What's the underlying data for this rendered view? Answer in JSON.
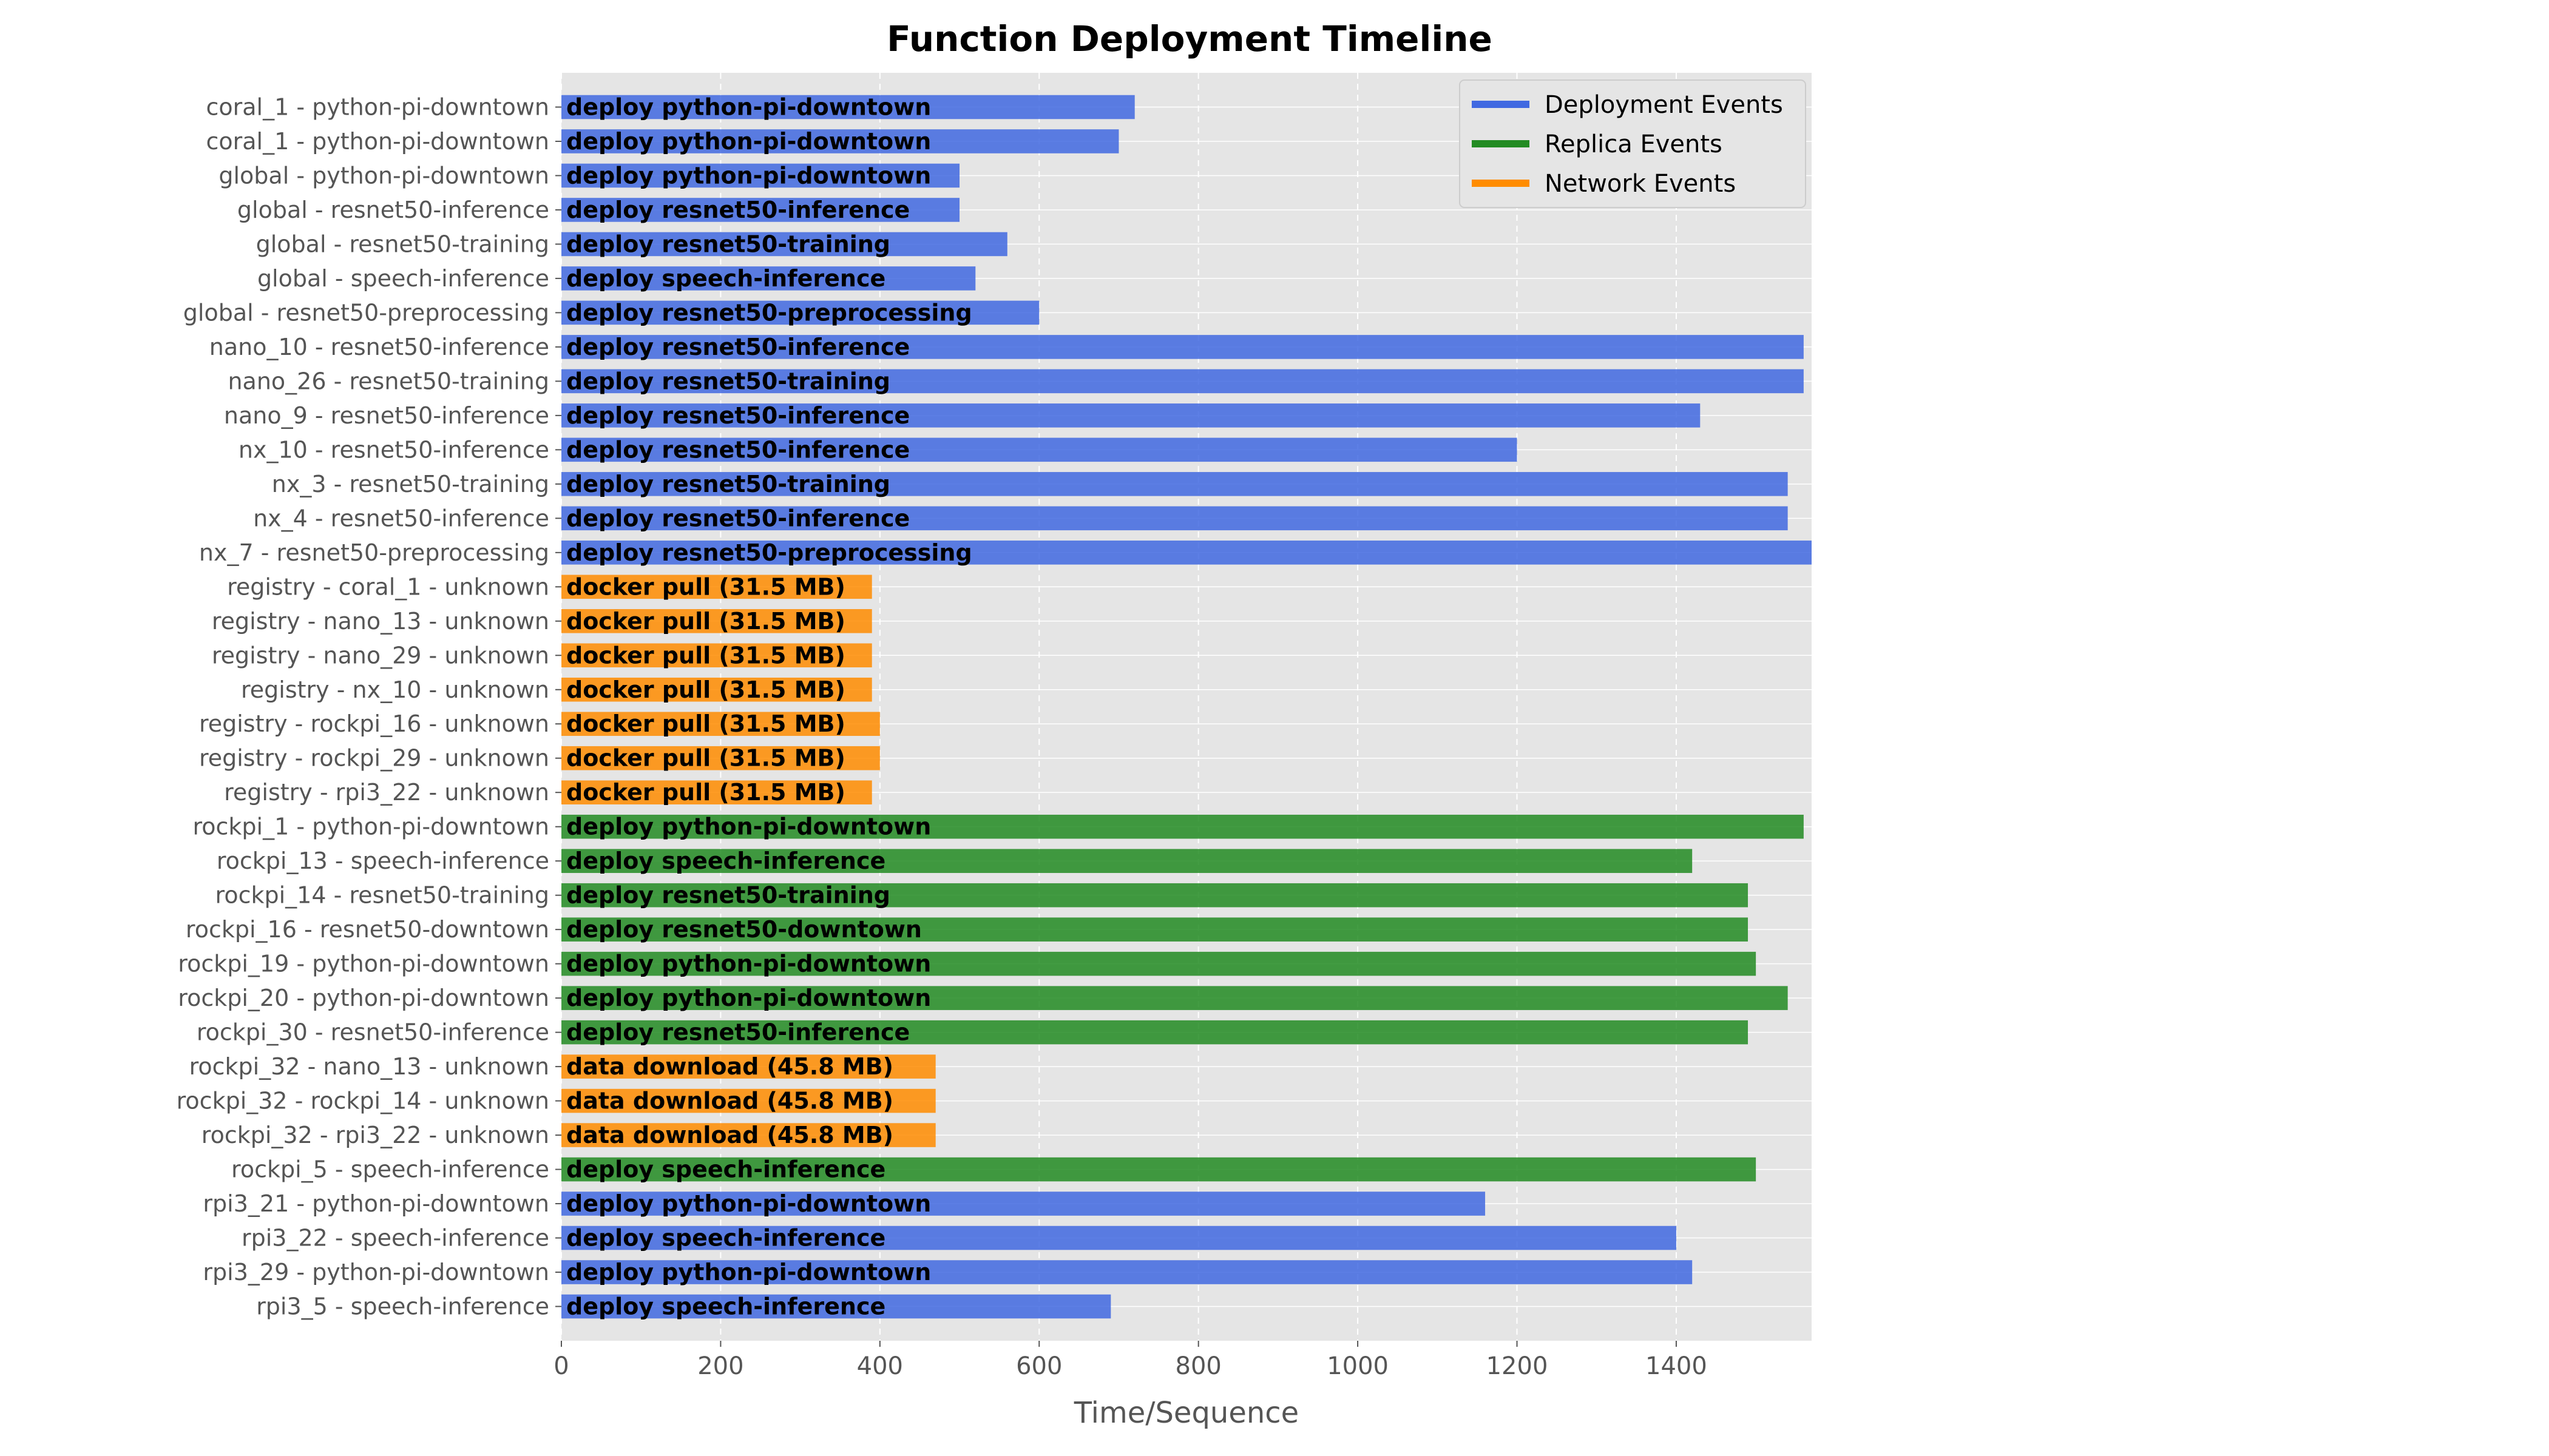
{
  "chart_data": {
    "type": "bar",
    "orientation": "horizontal-timeline",
    "title": "Function Deployment Timeline",
    "xlabel": "Time/Sequence",
    "ylabel": "",
    "xlim": [
      0,
      1570
    ],
    "xticks": [
      0,
      200,
      400,
      600,
      800,
      1000,
      1200,
      1400
    ],
    "grid": true,
    "legend_position": "top-right",
    "background": "#e5e5e5",
    "colors": {
      "deployment": "#4169e1",
      "replica": "#228b22",
      "network": "#ff8c00"
    },
    "legend": [
      {
        "name": "Deployment Events",
        "key": "deployment"
      },
      {
        "name": "Replica Events",
        "key": "replica"
      },
      {
        "name": "Network Events",
        "key": "network"
      }
    ],
    "rows": [
      {
        "label": "coral_1 - python-pi-downtown",
        "start": 0,
        "end": 720,
        "kind": "deployment",
        "text": "deploy python-pi-downtown"
      },
      {
        "label": "coral_1 - python-pi-downtown",
        "start": 0,
        "end": 700,
        "kind": "deployment",
        "text": "deploy python-pi-downtown"
      },
      {
        "label": "global - python-pi-downtown",
        "start": 0,
        "end": 500,
        "kind": "deployment",
        "text": "deploy python-pi-downtown"
      },
      {
        "label": "global - resnet50-inference",
        "start": 0,
        "end": 500,
        "kind": "deployment",
        "text": "deploy resnet50-inference"
      },
      {
        "label": "global - resnet50-training",
        "start": 0,
        "end": 560,
        "kind": "deployment",
        "text": "deploy resnet50-training"
      },
      {
        "label": "global - speech-inference",
        "start": 0,
        "end": 520,
        "kind": "deployment",
        "text": "deploy speech-inference"
      },
      {
        "label": "global - resnet50-preprocessing",
        "start": 0,
        "end": 600,
        "kind": "deployment",
        "text": "deploy resnet50-preprocessing"
      },
      {
        "label": "nano_10 - resnet50-inference",
        "start": 0,
        "end": 1560,
        "kind": "deployment",
        "text": "deploy resnet50-inference"
      },
      {
        "label": "nano_26 - resnet50-training",
        "start": 0,
        "end": 1560,
        "kind": "deployment",
        "text": "deploy resnet50-training"
      },
      {
        "label": "nano_9 - resnet50-inference",
        "start": 0,
        "end": 1430,
        "kind": "deployment",
        "text": "deploy resnet50-inference"
      },
      {
        "label": "nx_10 - resnet50-inference",
        "start": 0,
        "end": 1200,
        "kind": "deployment",
        "text": "deploy resnet50-inference"
      },
      {
        "label": "nx_3 - resnet50-training",
        "start": 0,
        "end": 1540,
        "kind": "deployment",
        "text": "deploy resnet50-training"
      },
      {
        "label": "nx_4 - resnet50-inference",
        "start": 0,
        "end": 1540,
        "kind": "deployment",
        "text": "deploy resnet50-inference"
      },
      {
        "label": "nx_7 - resnet50-preprocessing",
        "start": 0,
        "end": 1570,
        "kind": "deployment",
        "text": "deploy resnet50-preprocessing"
      },
      {
        "label": "registry - coral_1 - unknown",
        "start": 0,
        "end": 390,
        "kind": "network",
        "text": "docker pull (31.5 MB)"
      },
      {
        "label": "registry - nano_13 - unknown",
        "start": 0,
        "end": 390,
        "kind": "network",
        "text": "docker pull (31.5 MB)"
      },
      {
        "label": "registry - nano_29 - unknown",
        "start": 0,
        "end": 390,
        "kind": "network",
        "text": "docker pull (31.5 MB)"
      },
      {
        "label": "registry - nx_10 - unknown",
        "start": 0,
        "end": 390,
        "kind": "network",
        "text": "docker pull (31.5 MB)"
      },
      {
        "label": "registry - rockpi_16 - unknown",
        "start": 0,
        "end": 400,
        "kind": "network",
        "text": "docker pull (31.5 MB)"
      },
      {
        "label": "registry - rockpi_29 - unknown",
        "start": 0,
        "end": 400,
        "kind": "network",
        "text": "docker pull (31.5 MB)"
      },
      {
        "label": "registry - rpi3_22 - unknown",
        "start": 0,
        "end": 390,
        "kind": "network",
        "text": "docker pull (31.5 MB)"
      },
      {
        "label": "rockpi_1 - python-pi-downtown",
        "start": 0,
        "end": 1560,
        "kind": "replica",
        "text": "deploy python-pi-downtown"
      },
      {
        "label": "rockpi_13 - speech-inference",
        "start": 0,
        "end": 1420,
        "kind": "replica",
        "text": "deploy speech-inference"
      },
      {
        "label": "rockpi_14 - resnet50-training",
        "start": 0,
        "end": 1490,
        "kind": "replica",
        "text": "deploy resnet50-training"
      },
      {
        "label": "rockpi_16 - resnet50-downtown",
        "start": 0,
        "end": 1490,
        "kind": "replica",
        "text": "deploy resnet50-downtown"
      },
      {
        "label": "rockpi_19 - python-pi-downtown",
        "start": 0,
        "end": 1500,
        "kind": "replica",
        "text": "deploy python-pi-downtown"
      },
      {
        "label": "rockpi_20 - python-pi-downtown",
        "start": 0,
        "end": 1540,
        "kind": "replica",
        "text": "deploy python-pi-downtown"
      },
      {
        "label": "rockpi_30 - resnet50-inference",
        "start": 0,
        "end": 1490,
        "kind": "replica",
        "text": "deploy resnet50-inference"
      },
      {
        "label": "rockpi_32 - nano_13 - unknown",
        "start": 0,
        "end": 470,
        "kind": "network",
        "text": "data download (45.8 MB)"
      },
      {
        "label": "rockpi_32 - rockpi_14 - unknown",
        "start": 0,
        "end": 470,
        "kind": "network",
        "text": "data download (45.8 MB)"
      },
      {
        "label": "rockpi_32 - rpi3_22 - unknown",
        "start": 0,
        "end": 470,
        "kind": "network",
        "text": "data download (45.8 MB)"
      },
      {
        "label": "rockpi_5 - speech-inference",
        "start": 0,
        "end": 1500,
        "kind": "replica",
        "text": "deploy speech-inference"
      },
      {
        "label": "rpi3_21 - python-pi-downtown",
        "start": 0,
        "end": 1160,
        "kind": "deployment",
        "text": "deploy python-pi-downtown"
      },
      {
        "label": "rpi3_22 - speech-inference",
        "start": 0,
        "end": 1400,
        "kind": "deployment",
        "text": "deploy speech-inference"
      },
      {
        "label": "rpi3_29 - python-pi-downtown",
        "start": 0,
        "end": 1420,
        "kind": "deployment",
        "text": "deploy python-pi-downtown"
      },
      {
        "label": "rpi3_5 - speech-inference",
        "start": 0,
        "end": 690,
        "kind": "deployment",
        "text": "deploy speech-inference"
      }
    ]
  }
}
